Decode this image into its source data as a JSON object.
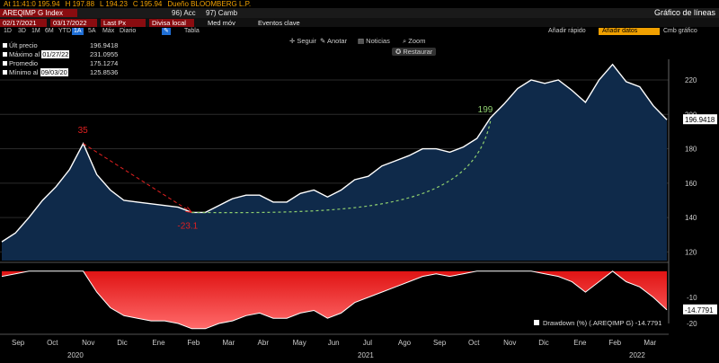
{
  "header": {
    "top_items": [
      "At 11:41:0 195.94",
      "H 197.88",
      "L 194.23",
      "C 195.94",
      "Dueño BLOOMBERG L.P."
    ],
    "ticker": "AREQIMP G Index",
    "acc_label": "96) Acc",
    "cambiar_label": "97) Camb",
    "window_title": "Gráfico de líneas"
  },
  "controls": {
    "date_from": "02/17/2021",
    "date_to": "03/17/2022",
    "field": "Last Px",
    "currency": "Divisa local",
    "med_mov": "Med móv",
    "events": "Eventos clave",
    "ranges": [
      "1D",
      "3D",
      "1M",
      "6M",
      "YTD",
      "1A",
      "5A",
      "Máx",
      "Diario"
    ],
    "selected_range": "1A",
    "table_label": "Tabla",
    "quick_add": "Añadir rápido",
    "quick_add_box": "Añadir datos",
    "edit_chart": "Cmb gráfico"
  },
  "toolbar": {
    "follow": "Seguir",
    "annotate": "Anotar",
    "news": "Noticias",
    "zoom": "Zoom",
    "restore": "Restaurar"
  },
  "legend": [
    {
      "label": "Últ precio",
      "date": "",
      "value": "196.9418"
    },
    {
      "label": "Máximo al",
      "date": "01/27/22",
      "value": "231.0955"
    },
    {
      "label": "Promedio",
      "date": "",
      "value": "175.1274"
    },
    {
      "label": "Mínimo al",
      "date": "09/03/20",
      "value": "125.8536"
    }
  ],
  "drawdown_legend": "Drawdown (%) (.AREQIMP G)  -14.7791",
  "colors": {
    "price_line": "#ffffff",
    "price_fill": "#0f2a4a",
    "drawdown_fill": "#e01414",
    "annotation_red": "#e02020",
    "annotation_green": "#8fcf6f",
    "accent_orange": "#f0a000",
    "last_tag_bg": "#ffffff"
  },
  "chart_data": [
    {
      "type": "area",
      "title": "",
      "ylim": [
        115,
        232
      ],
      "y_ticks": [
        120,
        140,
        160,
        180,
        200,
        220
      ],
      "last_value_tag": "196.9418",
      "annotations": [
        {
          "label": "35",
          "color": "red"
        },
        {
          "label": "-23.1",
          "color": "red"
        },
        {
          "label": "199",
          "color": "green"
        }
      ],
      "x": [
        "2020-09-03",
        "2020-09-10",
        "2020-09-17",
        "2020-09-24",
        "2020-10-01",
        "2020-10-08",
        "2020-10-15",
        "2020-10-22",
        "2020-10-29",
        "2020-11-05",
        "2020-11-12",
        "2020-11-19",
        "2020-11-26",
        "2020-12-03",
        "2020-12-10",
        "2020-12-17",
        "2020-12-24",
        "2021-01-07",
        "2021-01-21",
        "2021-02-04",
        "2021-02-18",
        "2021-03-04",
        "2021-03-18",
        "2021-04-01",
        "2021-04-15",
        "2021-04-29",
        "2021-05-13",
        "2021-05-27",
        "2021-06-10",
        "2021-06-24",
        "2021-07-08",
        "2021-07-22",
        "2021-08-05",
        "2021-08-19",
        "2021-09-02",
        "2021-09-16",
        "2021-09-30",
        "2021-10-14",
        "2021-10-28",
        "2021-11-11",
        "2021-11-25",
        "2021-12-09",
        "2021-12-23",
        "2022-01-06",
        "2022-01-20",
        "2022-01-27",
        "2022-02-10",
        "2022-02-24",
        "2022-03-10",
        "2022-03-17"
      ],
      "series": [
        {
          "values": [
            125.9,
            131,
            140,
            150,
            158,
            168,
            183,
            165,
            156,
            150,
            149,
            148,
            147,
            146,
            143,
            143,
            147,
            151,
            153,
            153,
            149,
            149,
            154,
            156,
            152,
            156,
            162,
            164,
            170,
            173,
            176,
            180,
            180,
            178,
            181,
            186,
            198,
            206,
            215,
            220,
            218,
            220,
            214,
            207,
            220,
            229,
            219,
            216,
            205,
            196.9
          ]
        }
      ]
    },
    {
      "type": "area",
      "title": "",
      "ylim": [
        -20,
        2
      ],
      "y_ticks": [
        -10,
        -20
      ],
      "last_value_tag": "-14.7791",
      "x_ticks": [
        "Sep",
        "Oct",
        "Nov",
        "Dic",
        "Ene",
        "Feb",
        "Mar",
        "Abr",
        "May",
        "Jun",
        "Jul",
        "Ago",
        "Sep",
        "Oct",
        "Nov",
        "Dic",
        "Ene",
        "Feb",
        "Mar"
      ],
      "year_labels": [
        "2020",
        "2021",
        "2022"
      ],
      "series": [
        {
          "values": [
            -2,
            -1,
            0,
            0,
            0,
            0,
            0,
            -8,
            -14,
            -17,
            -18,
            -19,
            -19,
            -20,
            -22,
            -22,
            -20,
            -19,
            -17,
            -16,
            -18,
            -18,
            -16,
            -15,
            -18,
            -16,
            -12,
            -10,
            -8,
            -6,
            -4,
            -2,
            -1,
            -2,
            -1,
            0,
            0,
            0,
            0,
            0,
            -1,
            -2,
            -4,
            -8,
            -4,
            0,
            -4,
            -6,
            -10,
            -14.8
          ]
        }
      ]
    }
  ]
}
